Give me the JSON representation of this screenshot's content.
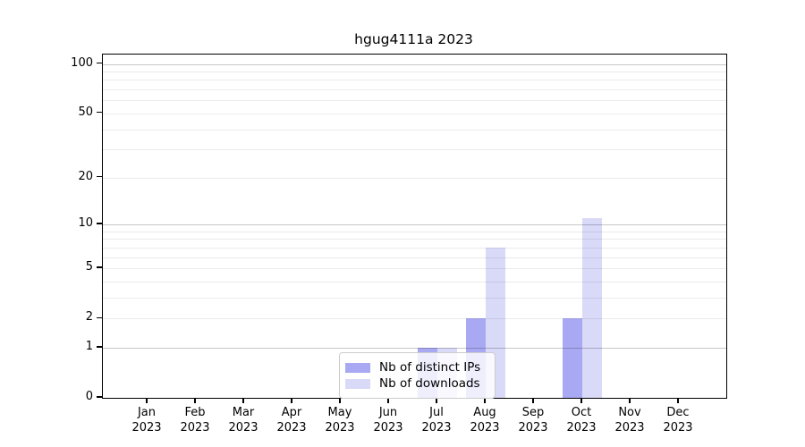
{
  "chart_data": {
    "type": "bar",
    "title": "hgug4111a 2023",
    "categories": [
      "Jan 2023",
      "Feb 2023",
      "Mar 2023",
      "Apr 2023",
      "May 2023",
      "Jun 2023",
      "Jul 2023",
      "Aug 2023",
      "Sep 2023",
      "Oct 2023",
      "Nov 2023",
      "Dec 2023"
    ],
    "series": [
      {
        "name": "Nb of distinct IPs",
        "color": "#a9a9f3",
        "values": [
          0,
          0,
          0,
          0,
          0,
          0,
          1,
          2,
          0,
          2,
          0,
          0
        ]
      },
      {
        "name": "Nb of downloads",
        "color": "#d9d9f8",
        "values": [
          0,
          0,
          0,
          0,
          0,
          0,
          1,
          7,
          0,
          11,
          0,
          0
        ]
      }
    ],
    "xlabel": "",
    "ylabel": "",
    "yscale": "log1p",
    "yticks": [
      0,
      1,
      2,
      5,
      10,
      20,
      50,
      100
    ],
    "ylim": [
      0,
      114
    ],
    "grid": {
      "orientation": "horizontal",
      "minor_values": [
        2,
        3,
        4,
        5,
        6,
        7,
        8,
        9,
        20,
        30,
        40,
        50,
        60,
        70,
        80,
        90
      ],
      "major_values": [
        1,
        10,
        100
      ],
      "minor_color": "rgba(0,0,0,0.08)",
      "major_color": "rgba(0,0,0,0.22)"
    },
    "legend": {
      "position": "bottom-center",
      "entries": [
        "Nb of distinct IPs",
        "Nb of downloads"
      ]
    },
    "colors": {
      "axis": "#000000",
      "text": "#000000",
      "background": "#ffffff"
    }
  }
}
